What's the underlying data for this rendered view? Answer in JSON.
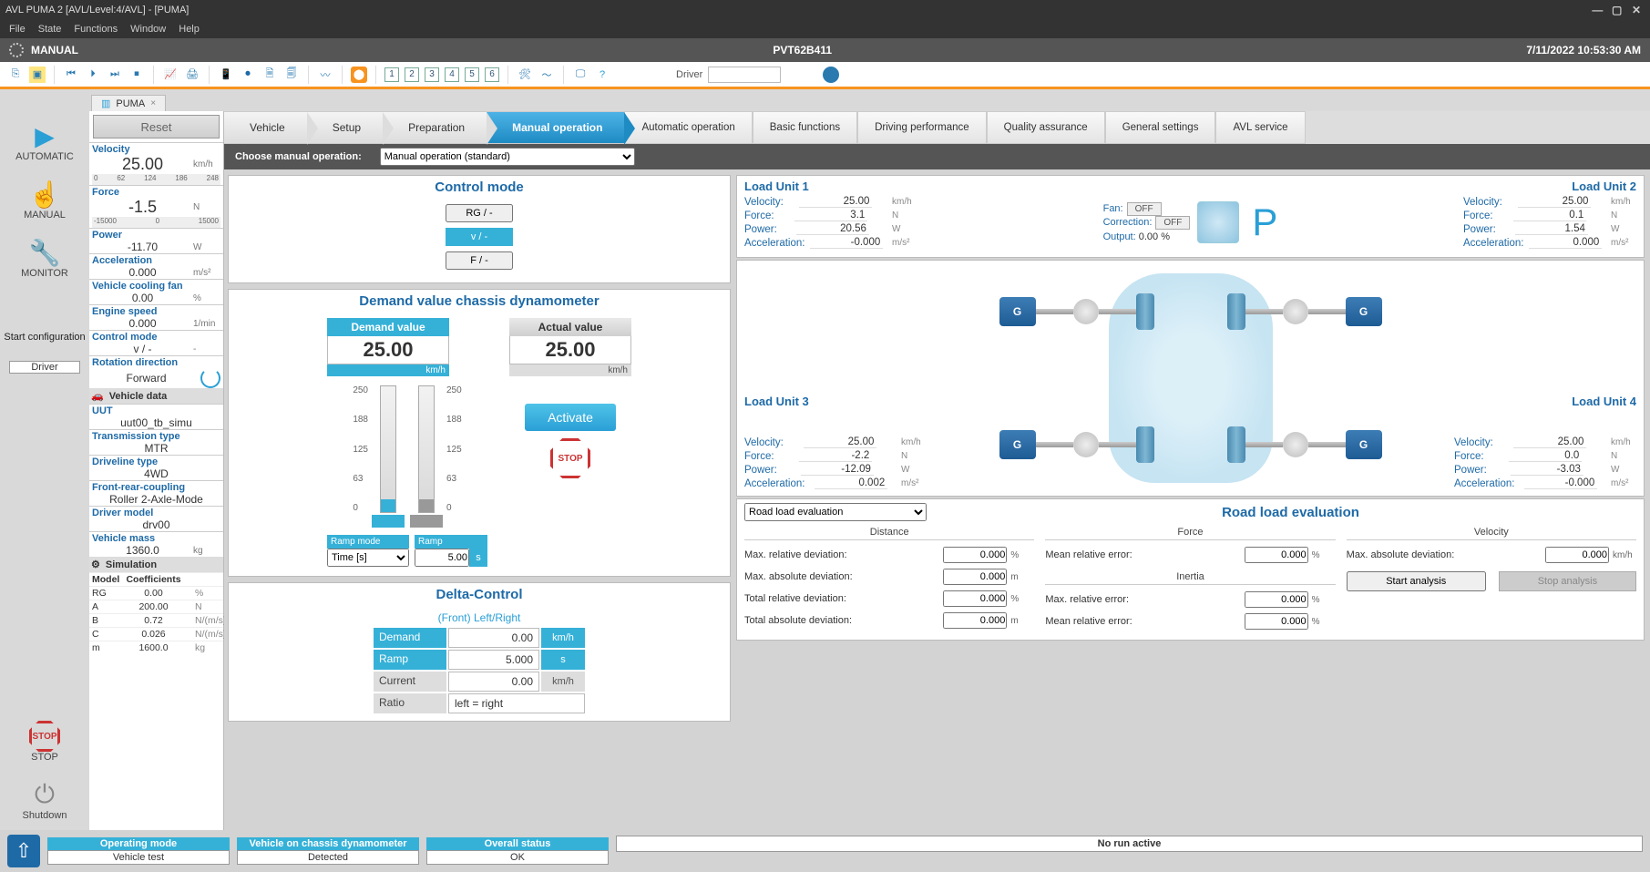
{
  "window": {
    "title": "AVL PUMA 2  [AVL/Level:4/AVL] - [PUMA]",
    "menus": [
      "File",
      "State",
      "Functions",
      "Window",
      "Help"
    ]
  },
  "statusbar": {
    "mode": "MANUAL",
    "code": "PVT62B411",
    "datetime": "7/11/2022 10:53:30 AM"
  },
  "toolbar": {
    "driver_label": "Driver",
    "driver_value": "",
    "numboxes": [
      "1",
      "2",
      "3",
      "4",
      "5",
      "6"
    ]
  },
  "tabstrip": {
    "tab": "PUMA"
  },
  "leftnav": {
    "items": [
      {
        "icon": "▶",
        "label": "AUTOMATIC",
        "color": "#2a9fd6"
      },
      {
        "icon": "☝",
        "label": "MANUAL",
        "color": "#f7931e"
      },
      {
        "icon": "🔧",
        "label": "MONITOR",
        "color": "#2a9fd6"
      }
    ],
    "startcfg_label": "Start configuration",
    "startcfg_value": "Driver",
    "stop_label": "STOP",
    "shutdown_label": "Shutdown"
  },
  "sidepanel": {
    "reset": "Reset",
    "velocity": {
      "label": "Velocity",
      "value": "25.00",
      "unit": "km/h",
      "ruler": [
        "0",
        "62",
        "124",
        "186",
        "248"
      ]
    },
    "force": {
      "label": "Force",
      "value": "-1.5",
      "unit": "N",
      "ruler": [
        "-15000",
        "0",
        "15000"
      ]
    },
    "power": {
      "label": "Power",
      "value": "-11.70",
      "unit": "W"
    },
    "accel": {
      "label": "Acceleration",
      "value": "0.000",
      "unit": "m/s²"
    },
    "coolfan": {
      "label": "Vehicle cooling fan",
      "value": "0.00",
      "unit": "%"
    },
    "engspd": {
      "label": "Engine speed",
      "value": "0.000",
      "unit": "1/min"
    },
    "ctrlmode": {
      "label": "Control mode",
      "value": "v / -"
    },
    "rotdir": {
      "label": "Rotation direction",
      "value": "Forward"
    },
    "vehdata_hdr": "Vehicle data",
    "uut": {
      "label": "UUT",
      "value": "uut00_tb_simu"
    },
    "trans": {
      "label": "Transmission type",
      "value": "MTR"
    },
    "drvline": {
      "label": "Driveline type",
      "value": "4WD"
    },
    "frc": {
      "label": "Front-rear-coupling",
      "value": "Roller 2-Axle-Mode"
    },
    "drvmodel": {
      "label": "Driver model",
      "value": "drv00"
    },
    "vmass": {
      "label": "Vehicle mass",
      "value": "1360.0",
      "unit": "kg"
    },
    "sim_hdr": "Simulation",
    "coef_hdr": {
      "model": "Model",
      "coef": "Coefficients"
    },
    "coefs": [
      {
        "k": "RG",
        "v": "0.00",
        "u": "%"
      },
      {
        "k": "A",
        "v": "200.00",
        "u": "N"
      },
      {
        "k": "B",
        "v": "0.72",
        "u": "N/(m/s)"
      },
      {
        "k": "C",
        "v": "0.026",
        "u": "N/(m/s)²"
      },
      {
        "k": "m",
        "v": "1600.0",
        "u": "kg"
      }
    ]
  },
  "steps": [
    "Vehicle",
    "Setup",
    "Preparation",
    "Manual operation"
  ],
  "navtabs": [
    "Automatic operation",
    "Basic functions",
    "Driving performance",
    "Quality assurance",
    "General settings",
    "AVL service"
  ],
  "chooser": {
    "label": "Choose manual operation:",
    "value": "Manual operation (standard)"
  },
  "controlmode": {
    "title": "Control mode",
    "buttons": [
      {
        "t": "RG / -",
        "sel": false
      },
      {
        "t": "v / -",
        "sel": true
      },
      {
        "t": "F / -",
        "sel": false
      }
    ]
  },
  "demand": {
    "title": "Demand value chassis dynamometer",
    "demand": {
      "hdr": "Demand value",
      "val": "25.00",
      "unit": "km/h"
    },
    "actual": {
      "hdr": "Actual value",
      "val": "25.00",
      "unit": "km/h"
    },
    "ticks": [
      "250",
      "188",
      "125",
      "63",
      "0"
    ],
    "demand_pct": 10,
    "actual_pct": 10,
    "activate": "Activate",
    "stop": "STOP",
    "rampmode": {
      "hdr": "Ramp mode",
      "val": "Time [s]"
    },
    "ramp": {
      "hdr": "Ramp",
      "val": "5.00",
      "unit": "s"
    }
  },
  "delta": {
    "title": "Delta-Control",
    "front": "(Front) Left/Right",
    "rows": [
      {
        "l": "Demand",
        "v": "0.00",
        "u": "km/h",
        "cls": "blue"
      },
      {
        "l": "Ramp",
        "v": "5.000",
        "u": "s",
        "cls": "blue"
      },
      {
        "l": "Current",
        "v": "0.00",
        "u": "km/h",
        "cls": "grey"
      }
    ],
    "ratio": {
      "l": "Ratio",
      "v": "left = right"
    }
  },
  "loadunits": {
    "lu1": {
      "title": "Load Unit 1",
      "velocity": "25.00",
      "force": "3.1",
      "power": "20.56",
      "accel": "-0.000"
    },
    "lu2": {
      "title": "Load Unit 2",
      "velocity": "25.00",
      "force": "0.1",
      "power": "1.54",
      "accel": "0.000"
    },
    "lu3": {
      "title": "Load Unit 3",
      "velocity": "25.00",
      "force": "-2.2",
      "power": "-12.09",
      "accel": "0.002"
    },
    "lu4": {
      "title": "Load Unit 4",
      "velocity": "25.00",
      "force": "0.0",
      "power": "-3.03",
      "accel": "-0.000"
    },
    "units": {
      "v": "km/h",
      "f": "N",
      "p": "W",
      "a": "m/s²"
    },
    "labels": {
      "v": "Velocity:",
      "f": "Force:",
      "p": "Power:",
      "a": "Acceleration:"
    },
    "fan": {
      "fan": "Fan:",
      "corr": "Correction:",
      "off": "OFF",
      "output": "Output:",
      "output_val": "0.00 %",
      "P": "P"
    }
  },
  "roadload": {
    "select": "Road load evaluation",
    "title": "Road load evaluation",
    "distance": {
      "sub": "Distance",
      "rows": [
        {
          "l": "Max. relative deviation:",
          "v": "0.000",
          "u": "%"
        },
        {
          "l": "Max. absolute deviation:",
          "v": "0.000",
          "u": "m"
        },
        {
          "l": "Total relative deviation:",
          "v": "0.000",
          "u": "%"
        },
        {
          "l": "Total absolute deviation:",
          "v": "0.000",
          "u": "m"
        }
      ]
    },
    "force": {
      "sub": "Force",
      "rows": [
        {
          "l": "Mean relative error:",
          "v": "0.000",
          "u": "%"
        }
      ],
      "inertia_sub": "Inertia",
      "inertia_rows": [
        {
          "l": "Max. relative error:",
          "v": "0.000",
          "u": "%"
        },
        {
          "l": "Mean relative error:",
          "v": "0.000",
          "u": "%"
        }
      ]
    },
    "velocity": {
      "sub": "Velocity",
      "rows": [
        {
          "l": "Max. absolute deviation:",
          "v": "0.000",
          "u": "km/h"
        }
      ],
      "start": "Start analysis",
      "stop": "Stop analysis"
    }
  },
  "footer": {
    "groups": [
      {
        "h": "Operating mode",
        "v": "Vehicle test"
      },
      {
        "h": "Vehicle on chassis dynamometer",
        "v": "Detected"
      },
      {
        "h": "Overall status",
        "v": "OK"
      }
    ],
    "run": "No run active"
  }
}
